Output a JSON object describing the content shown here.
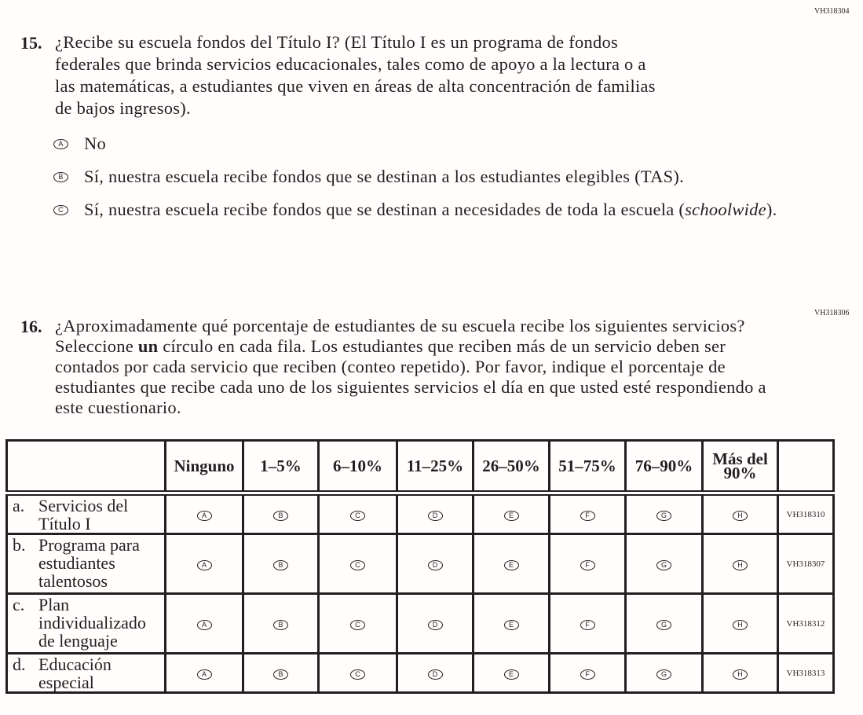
{
  "q15": {
    "code": "VH318304",
    "number": "15.",
    "lines": [
      "¿Recibe su escuela fondos del Título I? (El Título I es un programa de fondos",
      "federales que brinda servicios educacionales, tales como de apoyo a la lectura o a",
      "las matemáticas, a estudiantes que viven en áreas de alta concentración de familias",
      "de bajos ingresos)."
    ],
    "options": [
      {
        "bubble": "A",
        "text": "No"
      },
      {
        "bubble": "B",
        "text": "Sí, nuestra escuela recibe fondos que se destinan a los estudiantes elegibles (TAS)."
      },
      {
        "bubble": "C",
        "text_before": "Sí, nuestra escuela recibe fondos que se destinan a necesidades de toda la escuela (",
        "text_italic": "schoolwide",
        "text_after": ")."
      }
    ]
  },
  "q16": {
    "code": "VH318306",
    "number": "16.",
    "line1": "¿Aproximadamente qué porcentaje de estudiantes de su escuela recibe los siguientes servicios?",
    "line2_before": "Seleccione ",
    "line2_bold": "un",
    "line2_after": " círculo en cada fila. Los estudiantes que reciben más de un servicio deben ser",
    "lines": [
      "contados por cada servicio que reciben (conteo repetido). Por favor, indique el porcentaje de",
      "estudiantes que recibe cada uno de los siguientes servicios el día en que usted esté respondiendo a",
      "este cuestionario."
    ],
    "columns": [
      "Ninguno",
      "1–5%",
      "6–10%",
      "11–25%",
      "26–50%",
      "51–75%",
      "76–90%",
      "Más del 90%"
    ],
    "bubbles": [
      "A",
      "B",
      "C",
      "D",
      "E",
      "F",
      "G",
      "H"
    ],
    "rows": [
      {
        "letter": "a.",
        "label": "Servicios del\nTítulo I",
        "code": "VH318310"
      },
      {
        "letter": "b.",
        "label": "Programa para\nestudiantes\ntalentosos",
        "code": "VH318307"
      },
      {
        "letter": "c.",
        "label": "Plan\nindividualizado\nde lenguaje",
        "code": "VH318312"
      },
      {
        "letter": "d.",
        "label": "Educación\nespecial",
        "code": "VH318313"
      }
    ]
  }
}
